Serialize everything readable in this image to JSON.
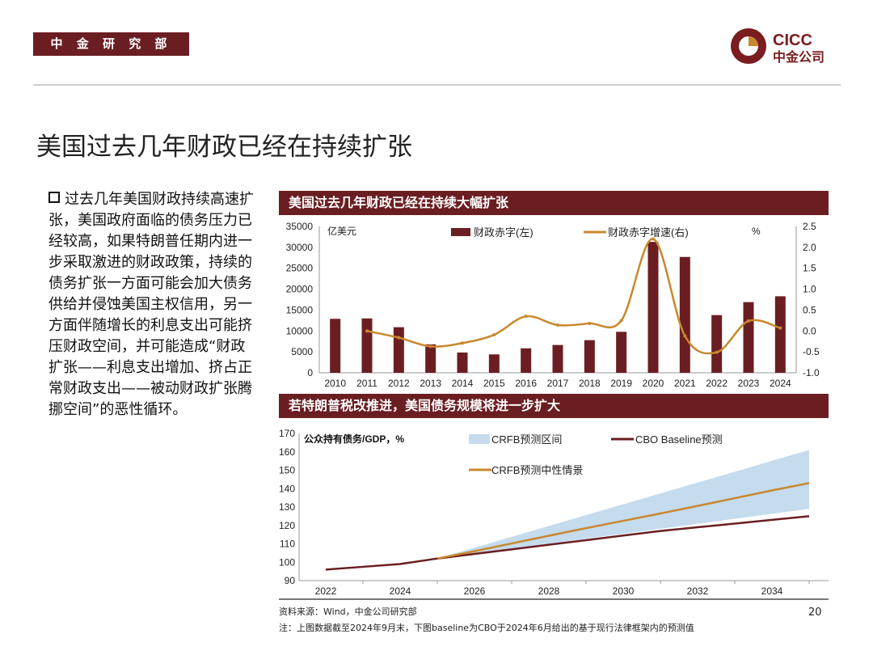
{
  "header": {
    "dept": "中 金 研 究 部",
    "logo_text_en": "CICC",
    "logo_text_cn": "中金公司"
  },
  "title": "美国过去几年财政已经在持续扩张",
  "body": {
    "bullet_icon": "square-bullet-icon",
    "text": "过去几年美国财政持续高速扩张，美国政府面临的债务压力已经较高，如果特朗普任期内进一步采取激进的财政政策，持续的债务扩张一方面可能会加大债务供给并侵蚀美国主权信用，另一方面伴随增长的利息支出可能挤压财政空间，并可能造成“财政扩张——利息支出增加、挤占正常财政支出——被动财政扩张腾挪空间”的恶性循环。"
  },
  "colors": {
    "brand": "#6b1e22",
    "orange": "#c8882e",
    "band": "#c5dbee"
  },
  "chart_data": [
    {
      "type": "bar+line",
      "title": "美国过去几年财政已经在持续大幅扩张",
      "categories": [
        "2010",
        "2011",
        "2012",
        "2013",
        "2014",
        "2015",
        "2016",
        "2017",
        "2018",
        "2019",
        "2020",
        "2021",
        "2022",
        "2023",
        "2024"
      ],
      "left_unit": "亿美元",
      "right_unit": "%",
      "ylim_left": [
        0,
        35000
      ],
      "ylim_right": [
        -1.0,
        2.5
      ],
      "yticks_left": [
        "0",
        "5000",
        "10000",
        "15000",
        "20000",
        "25000",
        "30000",
        "35000"
      ],
      "yticks_right": [
        "-1.0",
        "-0.5",
        "0.0",
        "0.5",
        "1.0",
        "1.5",
        "2.0",
        "2.5"
      ],
      "series": [
        {
          "name": "财政赤字(左)",
          "axis": "left",
          "kind": "bar",
          "values": [
            12900,
            13000,
            10900,
            6800,
            4850,
            4400,
            5850,
            6650,
            7800,
            9800,
            31300,
            27700,
            13800,
            16900,
            18300
          ]
        },
        {
          "name": "财政赤字增速(右)",
          "axis": "right",
          "kind": "line",
          "values": [
            null,
            0.0,
            -0.16,
            -0.37,
            -0.29,
            -0.09,
            0.35,
            0.14,
            0.18,
            0.25,
            2.2,
            -0.12,
            -0.51,
            0.24,
            0.07
          ]
        }
      ]
    },
    {
      "type": "line+area",
      "title": "若特朗普税改推进，美国债务规模将进一步扩大",
      "ylabel": "公众持有债务/GDP，%",
      "ylim": [
        90,
        170
      ],
      "yticks": [
        "90",
        "100",
        "110",
        "120",
        "130",
        "140",
        "150",
        "160",
        "170"
      ],
      "x": [
        2022,
        2023,
        2024,
        2025,
        2026,
        2027,
        2028,
        2029,
        2030,
        2031,
        2032,
        2033,
        2034,
        2035
      ],
      "xticks": [
        "2022",
        "2024",
        "2026",
        "2028",
        "2030",
        "2032",
        "2034"
      ],
      "series": [
        {
          "name": "CRFB预测区间",
          "kind": "band",
          "lower": [
            null,
            null,
            null,
            102,
            104.7,
            107.4,
            110.1,
            112.8,
            115.5,
            118.2,
            120.9,
            123.6,
            126.3,
            129
          ],
          "upper": [
            null,
            null,
            null,
            102,
            107.9,
            113.8,
            119.7,
            125.6,
            131.5,
            137.4,
            143.3,
            149.2,
            155.1,
            161
          ]
        },
        {
          "name": "CBO Baseline预测",
          "kind": "line",
          "values": [
            96,
            97.5,
            99,
            102,
            104.5,
            107,
            109.5,
            112,
            114.5,
            117,
            119,
            121,
            123,
            125
          ]
        },
        {
          "name": "CRFB预测中性情景",
          "kind": "line",
          "values": [
            null,
            null,
            null,
            102,
            106,
            110.2,
            114.4,
            118.5,
            122.5,
            126.5,
            130.6,
            134.8,
            139,
            143
          ]
        }
      ]
    }
  ],
  "footer": {
    "source": "资料来源：Wind，中金公司研究部",
    "note": "注：上图数据截至2024年9月末，下图baseline为CBO于2024年6月给出的基于现行法律框架内的预测值",
    "page": "20"
  }
}
